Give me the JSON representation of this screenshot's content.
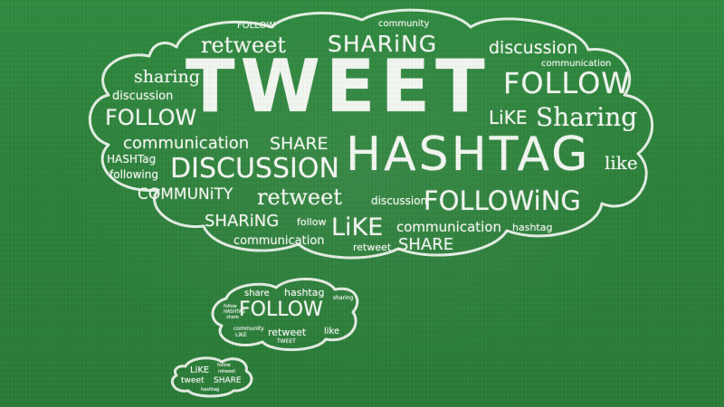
{
  "colors": {
    "board": "#2b7f39",
    "chalk": "#f3f7f1"
  },
  "big_cloud": {
    "tweet": "TWEET",
    "hashtag": "HASHTAG",
    "follow_top": "FOLLOW",
    "follow_left": "FOLLOW",
    "following": "FOLLOWiNG",
    "discussion_big": "DISCUSSION",
    "sharing_top": "SHARiNG",
    "sharing_bottom": "SHARiNG",
    "retweet_top": "retweet",
    "retweet_mid": "retweet",
    "retweet_bottom": "retweet",
    "community_top": "community",
    "community_big": "COMMUNiTY",
    "discussion_right": "discussion",
    "discussion_left": "discussion",
    "discussion_mid": "discussion",
    "communication_right": "communication",
    "communication_left": "communication",
    "communication_mid": "communication",
    "communication_bottom": "communication",
    "follow_small_top": "FOLLOW",
    "follow_small_mid": "follow",
    "sharing_left": "sharing",
    "sharing_right": "Sharing",
    "share_left": "SHARE",
    "share_bottom": "SHARE",
    "like_right": "LiKE",
    "like_far_right": "like",
    "like_big": "LiKE",
    "hashtag_small_left": "HASHTag",
    "hashtag_small_right": "hashtag",
    "following_small": "following"
  },
  "mid_cloud": {
    "share": "share",
    "hashtag": "hashtag",
    "sharing": "sharing",
    "follow_small": "follow",
    "hashtag_small": "HASHTAG",
    "share_small": "share",
    "follow_big": "FOLLOW",
    "community": "community",
    "like_small": "LiKE",
    "retweet": "retweet",
    "like": "like",
    "tweet": "TWEET"
  },
  "small_cloud": {
    "like": "LiKE",
    "follow": "follow",
    "retweet": "retweet",
    "tweet": "tweet",
    "share": "SHARE",
    "hashtag": "hashtag"
  }
}
